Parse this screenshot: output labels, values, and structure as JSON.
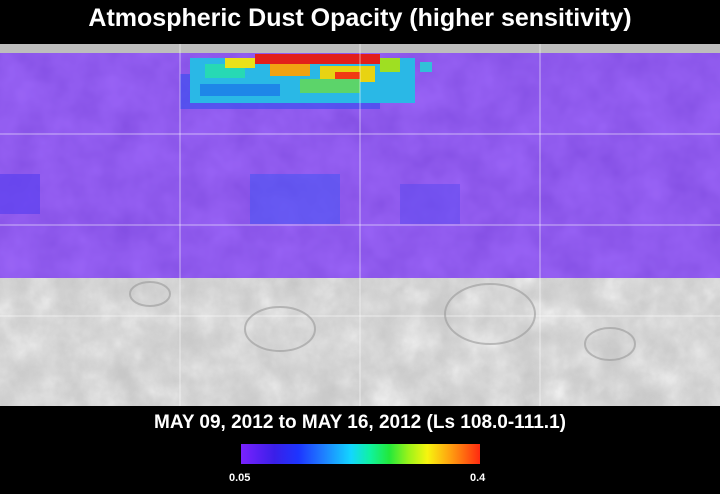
{
  "title": "Atmospheric Dust Opacity (higher sensitivity)",
  "date_range": "MAY 09, 2012 to MAY 16, 2012 (Ls 108.0-111.1)",
  "scale": {
    "min_label": "0.05",
    "max_label": "0.4",
    "min": 0.05,
    "max": 0.4
  },
  "colors": {
    "background": "#000000",
    "low_opacity": "#6a2bf0",
    "mid_opacity": "#1fbfe6",
    "high_opacity": "#ff2a10",
    "terrain": "#cfcfcf"
  }
}
